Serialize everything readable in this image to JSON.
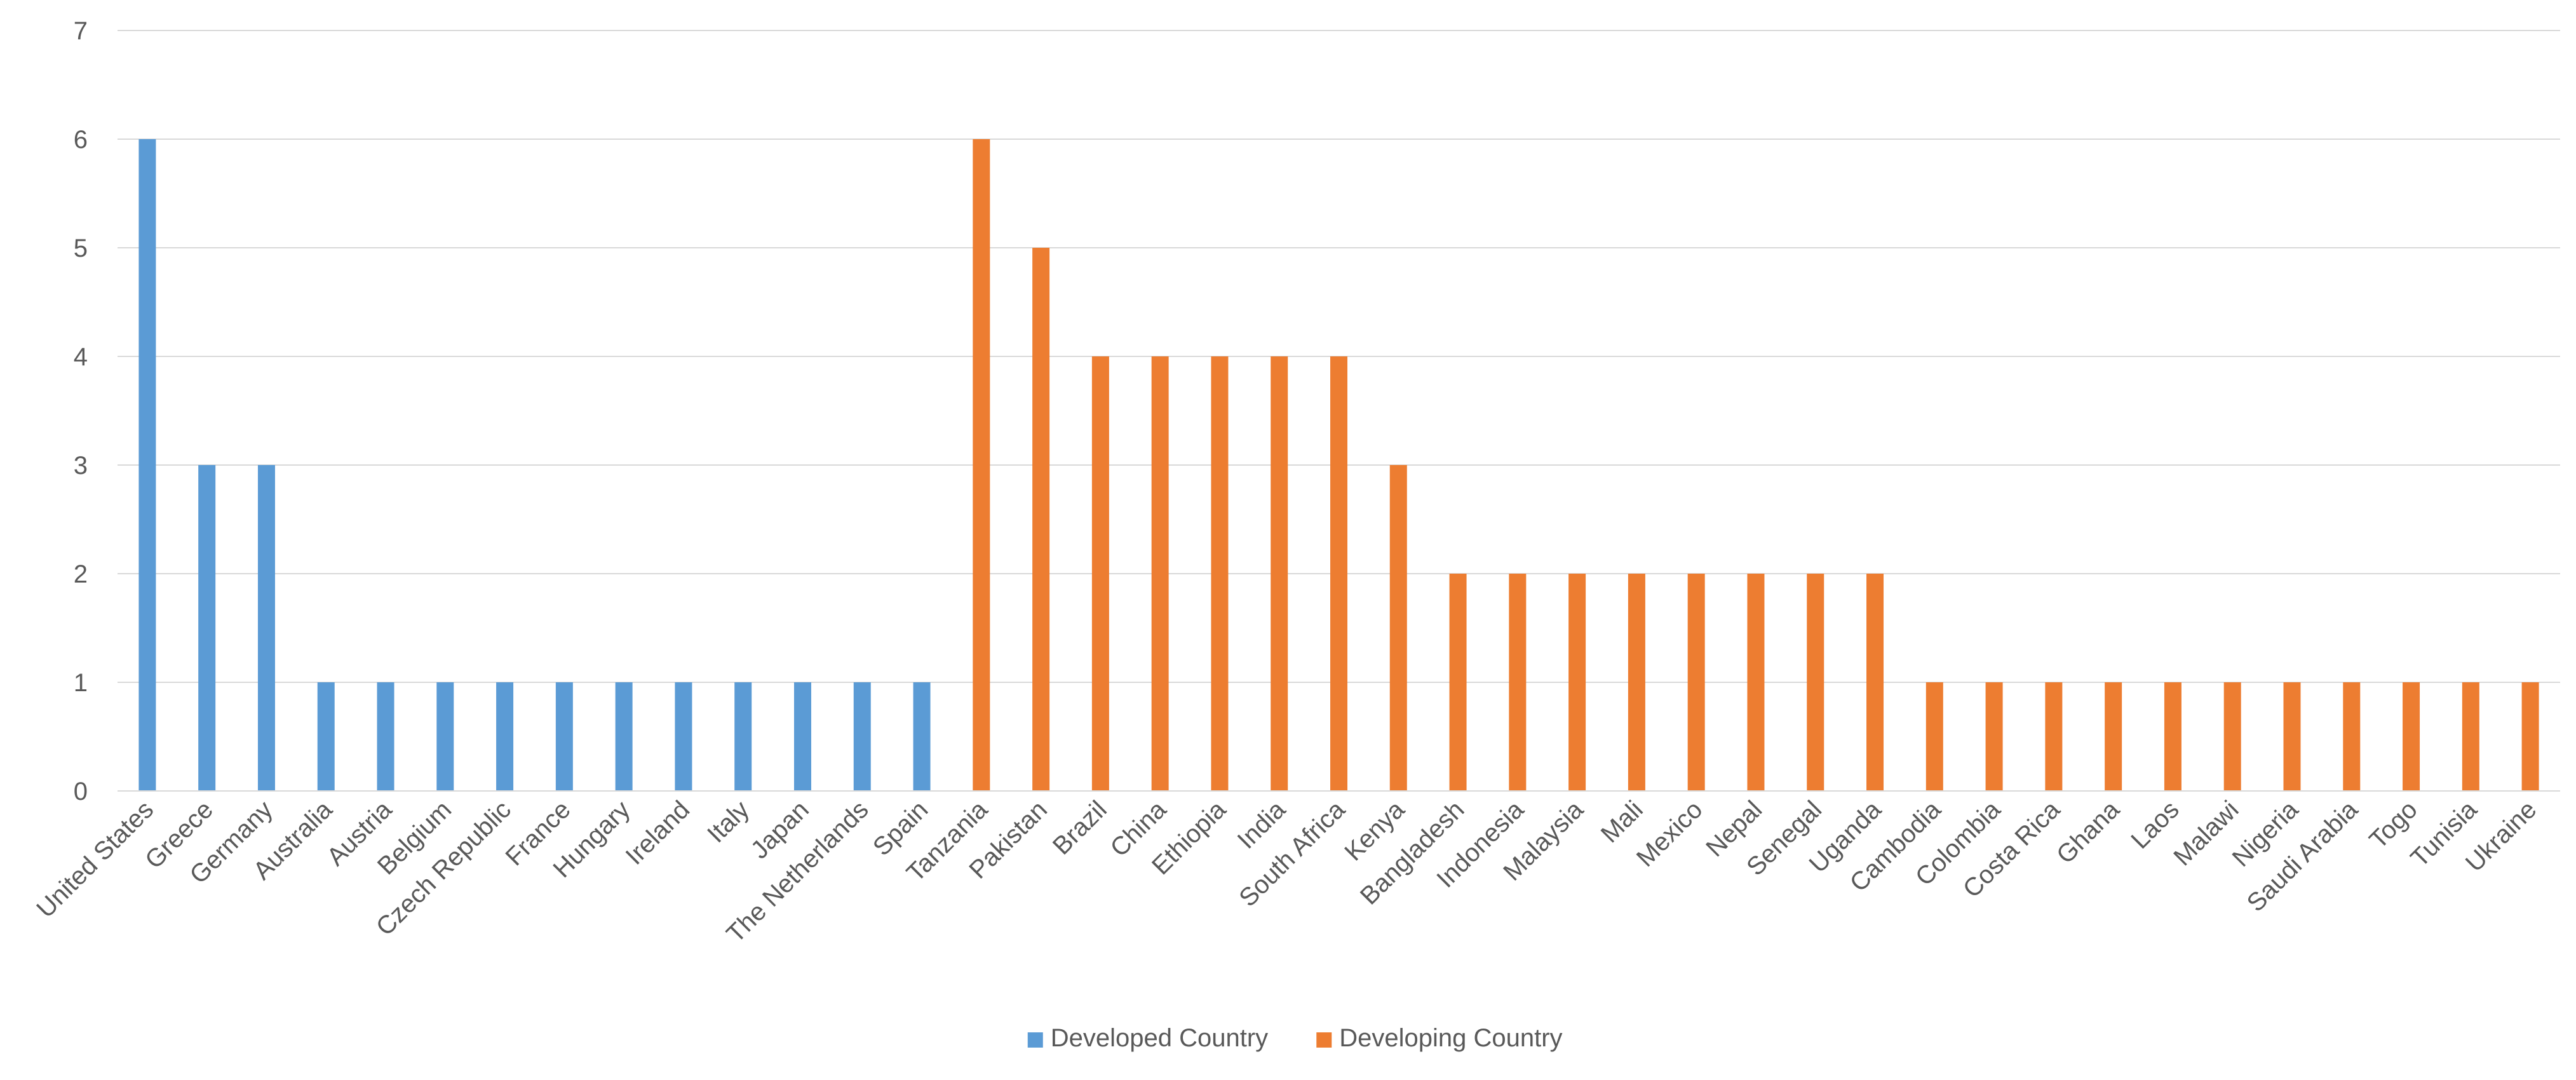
{
  "chart_data": {
    "type": "bar",
    "title": "",
    "xlabel": "",
    "ylabel": "",
    "ylim": [
      0,
      7
    ],
    "yticks": [
      0,
      1,
      2,
      3,
      4,
      5,
      6,
      7
    ],
    "grid": true,
    "legend_position": "bottom",
    "categories": [
      "United States",
      "Greece",
      "Germany",
      "Australia",
      "Austria",
      "Belgium",
      "Czech Republic",
      "France",
      "Hungary",
      "Ireland",
      "Italy",
      "Japan",
      "The Netherlands",
      "Spain",
      "Tanzania",
      "Pakistan",
      "Brazil",
      "China",
      "Ethiopia",
      "India",
      "South Africa",
      "Kenya",
      "Bangladesh",
      "Indonesia",
      "Malaysia",
      "Mali",
      "Mexico",
      "Nepal",
      "Senegal",
      "Uganda",
      "Cambodia",
      "Colombia",
      "Costa Rica",
      "Ghana",
      "Laos",
      "Malawi",
      "Nigeria",
      "Saudi Arabia",
      "Togo",
      "Tunisia",
      "Ukraine"
    ],
    "series": [
      {
        "name": "Developed Country",
        "color": "#5B9BD5",
        "values": [
          6,
          3,
          3,
          1,
          1,
          1,
          1,
          1,
          1,
          1,
          1,
          1,
          1,
          1,
          null,
          null,
          null,
          null,
          null,
          null,
          null,
          null,
          null,
          null,
          null,
          null,
          null,
          null,
          null,
          null,
          null,
          null,
          null,
          null,
          null,
          null,
          null,
          null,
          null,
          null,
          null
        ]
      },
      {
        "name": "Developing Country",
        "color": "#ED7D31",
        "values": [
          null,
          null,
          null,
          null,
          null,
          null,
          null,
          null,
          null,
          null,
          null,
          null,
          null,
          null,
          6,
          5,
          4,
          4,
          4,
          4,
          4,
          3,
          2,
          2,
          2,
          2,
          2,
          2,
          2,
          2,
          1,
          1,
          1,
          1,
          1,
          1,
          1,
          1,
          1,
          1,
          1
        ]
      }
    ]
  }
}
